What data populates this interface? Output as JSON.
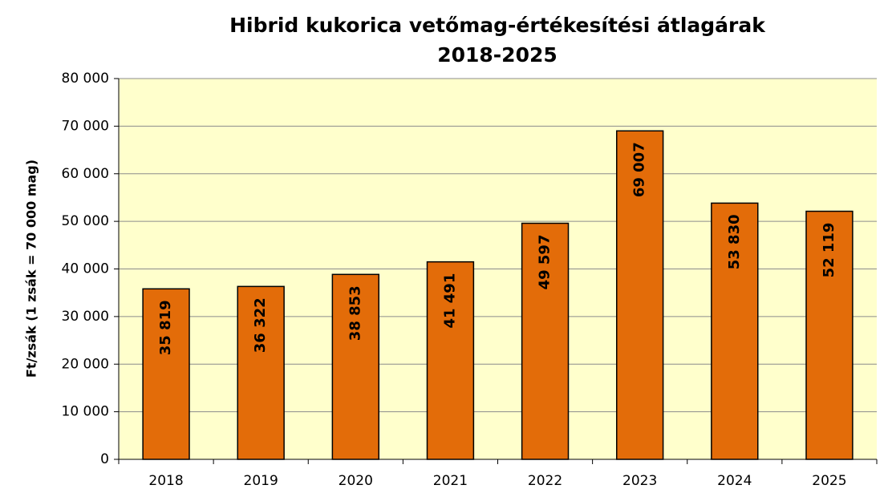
{
  "chart_data": {
    "type": "bar",
    "title": "Hibrid kukorica vetőmag-értékesítési átlagárak",
    "subtitle": "2018-2025",
    "y_label": "Ft/zsák (1 zsák = 70 000 mag)",
    "categories": [
      "2018",
      "2019",
      "2020",
      "2021",
      "2022",
      "2023",
      "2024",
      "2025"
    ],
    "values": [
      35819,
      36322,
      38853,
      41491,
      49597,
      69007,
      53830,
      52119
    ],
    "value_labels": [
      "35 819",
      "36 322",
      "38 853",
      "41 491",
      "49 597",
      "69 007",
      "53 830",
      "52 119"
    ],
    "color": "#e36c09",
    "plot_background": "#ffffcc",
    "ylim": [
      0,
      80000
    ],
    "yticks": [
      0,
      {
        "value": 10000,
        "label": "10 000"
      },
      {
        "value": 20000,
        "label": "20 000"
      },
      {
        "value": 30000,
        "label": "30 000"
      },
      {
        "value": 40000,
        "label": "40 000"
      },
      {
        "value": 50000,
        "label": "50 000"
      },
      {
        "value": 60000,
        "label": "60 000"
      },
      {
        "value": 70000,
        "label": "70 000"
      },
      {
        "value": 80000,
        "label": "80 000"
      }
    ],
    "grid": true
  }
}
